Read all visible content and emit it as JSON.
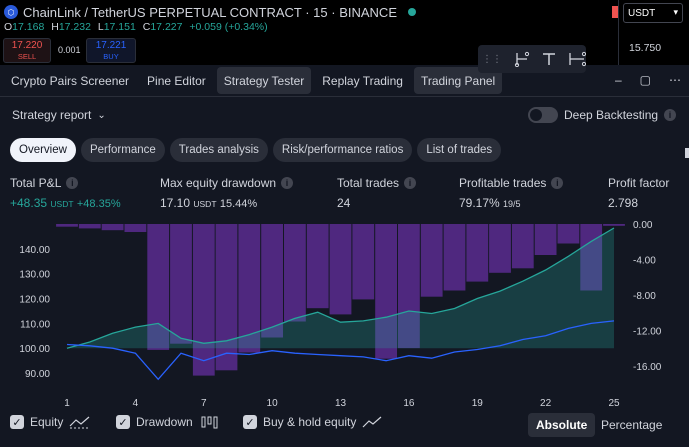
{
  "topbar": {
    "symbol": "ChainLink / TetherUS PERPETUAL CONTRACT · 15 · BINANCE",
    "logo_icon": "chainlink-logo-icon",
    "ohlc": {
      "o_label": "O",
      "o": "17.168",
      "h_label": "H",
      "h": "17.232",
      "l_label": "L",
      "l": "17.151",
      "c_label": "C",
      "c": "17.227",
      "change": "+0.059 (+0.34%)"
    },
    "sell_price": "17.220",
    "sell_label": "SELL",
    "spread": "0.001",
    "buy_price": "17.221",
    "buy_label": "BUY",
    "currency": "USDT",
    "scale_value": "15.750"
  },
  "panel_tabs": [
    {
      "label": "Crypto Pairs Screener"
    },
    {
      "label": "Pine Editor"
    },
    {
      "label": "Strategy Tester"
    },
    {
      "label": "Replay Trading"
    },
    {
      "label": "Trading Panel"
    }
  ],
  "panel_actions": {
    "collapse": "–",
    "maximize": "▢",
    "more": "⋯"
  },
  "report": {
    "title": "Strategy report",
    "deep_backtesting": "Deep Backtesting",
    "tabs": [
      "Overview",
      "Performance",
      "Trades analysis",
      "Risk/performance ratios",
      "List of trades"
    ]
  },
  "metrics": [
    {
      "label": "Total P&L",
      "value": "+48.35",
      "unit": "USDT",
      "pct": "+48.35%"
    },
    {
      "label": "Max equity drawdown",
      "value": "17.10",
      "unit": "USDT",
      "pct": "15.44%"
    },
    {
      "label": "Total trades",
      "value": "24"
    },
    {
      "label": "Profitable trades",
      "value": "79.17%",
      "sub": "19/5"
    },
    {
      "label": "Profit factor",
      "value": "2.798"
    }
  ],
  "chart_data": {
    "type": "area",
    "x_ticks": [
      1,
      4,
      7,
      10,
      13,
      16,
      19,
      22,
      25
    ],
    "x_range": [
      1,
      25
    ],
    "left_axis": {
      "ticks": [
        "140.00",
        "130.00",
        "120.00",
        "110.00",
        "100.00",
        "90.00"
      ],
      "range": [
        84,
        150
      ]
    },
    "right_axis": {
      "ticks": [
        "0.00",
        "-4.00",
        "-8.00",
        "-12.00",
        "-16.00"
      ],
      "range": [
        -18.5,
        0
      ]
    },
    "series": [
      {
        "name": "Equity",
        "type": "area",
        "color": "#26a69a",
        "x": [
          1,
          2,
          3,
          4,
          5,
          6,
          7,
          8,
          9,
          10,
          11,
          12,
          13,
          14,
          15,
          16,
          17,
          18,
          19,
          20,
          21,
          22,
          23,
          24,
          25
        ],
        "y": [
          100.0,
          102.5,
          106.0,
          108.5,
          110.0,
          104.0,
          102.0,
          103.0,
          105.5,
          108.5,
          112.0,
          114.5,
          110.5,
          111.0,
          112.5,
          115.0,
          114.0,
          116.0,
          120.0,
          123.0,
          127.0,
          131.5,
          137.0,
          143.0,
          148.4
        ]
      },
      {
        "name": "Drawdown",
        "type": "bar",
        "color": "#5b2c8f",
        "x": [
          1,
          2,
          3,
          4,
          5,
          6,
          7,
          8,
          9,
          10,
          11,
          12,
          13,
          14,
          15,
          16,
          17,
          18,
          19,
          20,
          21,
          22,
          23,
          24,
          25
        ],
        "y": [
          -0.3,
          -0.5,
          -0.7,
          -0.9,
          -14.2,
          -13.5,
          -17.1,
          -16.5,
          -14.5,
          -12.8,
          -11.0,
          -9.5,
          -10.2,
          -8.5,
          -15.2,
          -14.0,
          -8.2,
          -7.5,
          -6.5,
          -5.5,
          -5.0,
          -3.5,
          -2.2,
          -7.5,
          -0.2
        ]
      },
      {
        "name": "Buy & hold equity",
        "type": "line",
        "color": "#2962ff",
        "x": [
          1,
          2,
          3,
          4,
          5,
          6,
          7,
          8,
          9,
          10,
          11,
          12,
          13,
          14,
          15,
          16,
          17,
          18,
          19,
          20,
          21,
          22,
          23,
          24,
          25
        ],
        "y": [
          101.5,
          101.0,
          100.0,
          98.0,
          87.5,
          98.0,
          95.0,
          98.0,
          97.5,
          99.0,
          98.0,
          97.5,
          97.0,
          96.5,
          95.0,
          97.0,
          96.0,
          98.5,
          99.5,
          101.0,
          103.5,
          105.0,
          108.0,
          110.0,
          111.0
        ]
      }
    ]
  },
  "legend": {
    "equity": "Equity",
    "drawdown": "Drawdown",
    "buy_hold": "Buy & hold equity",
    "absolute": "Absolute",
    "percentage": "Percentage"
  }
}
